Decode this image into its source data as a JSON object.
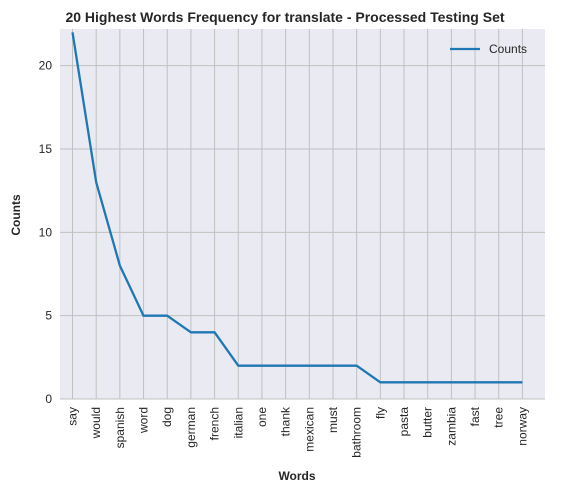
{
  "chart_data": {
    "type": "line",
    "title": "20 Highest Words Frequency for translate - Processed Testing Set",
    "xlabel": "Words",
    "ylabel": "Counts",
    "categories": [
      "say",
      "would",
      "spanish",
      "word",
      "dog",
      "german",
      "french",
      "italian",
      "one",
      "thank",
      "mexican",
      "must",
      "bathroom",
      "fly",
      "pasta",
      "butter",
      "zambia",
      "fast",
      "tree",
      "norway"
    ],
    "series": [
      {
        "name": "Counts",
        "values": [
          22,
          13,
          8,
          5,
          5,
          4,
          4,
          2,
          2,
          2,
          2,
          2,
          2,
          1,
          1,
          1,
          1,
          1,
          1,
          1
        ]
      }
    ],
    "ylim": [
      0,
      22.2
    ],
    "yticks": [
      "0",
      "5",
      "10",
      "15",
      "20"
    ],
    "grid": true,
    "legend": "top-right",
    "colors": {
      "line": "#1f77b4",
      "plot_bg": "#eaeaf2",
      "grid": "#c0c0c0"
    }
  }
}
